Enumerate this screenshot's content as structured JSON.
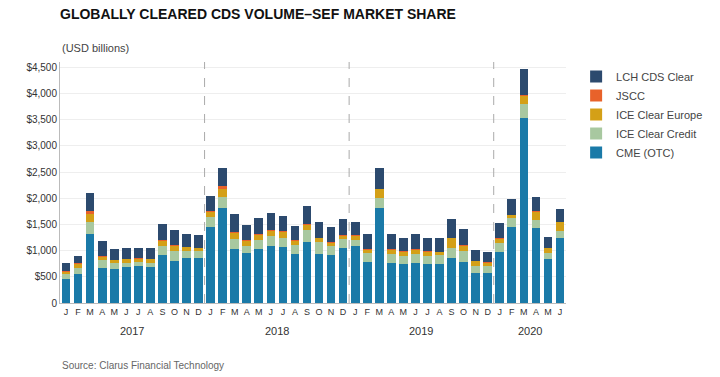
{
  "chart_data": {
    "type": "bar",
    "stacked": true,
    "title": "GLOBALLY CLEARED CDS VOLUME–SEF MARKET SHARE",
    "subtitle": "(USD billions)",
    "source": "Source: Clarus Financial Technology",
    "categories": [
      "J",
      "F",
      "M",
      "A",
      "M",
      "J",
      "J",
      "A",
      "S",
      "O",
      "N",
      "D",
      "J",
      "F",
      "M",
      "A",
      "M",
      "J",
      "J",
      "A",
      "S",
      "O",
      "N",
      "D",
      "J",
      "F",
      "M",
      "A",
      "M",
      "J",
      "J",
      "A",
      "S",
      "O",
      "N",
      "D",
      "J",
      "F",
      "M",
      "A",
      "M",
      "J"
    ],
    "annotations": [
      "2017",
      "2018",
      "2019",
      "2020"
    ],
    "series": [
      {
        "name": "CME (OTC)",
        "color": "#1a7aa8",
        "values": [
          460,
          550,
          1320,
          660,
          650,
          680,
          700,
          680,
          910,
          800,
          850,
          850,
          1460,
          1820,
          1030,
          950,
          1040,
          1080,
          1060,
          930,
          1160,
          940,
          920,
          1050,
          1080,
          780,
          1810,
          760,
          740,
          760,
          750,
          740,
          860,
          780,
          570,
          570,
          980,
          1460,
          3540,
          1430,
          840,
          1250
        ]
      },
      {
        "name": "ICE Clear Credit",
        "color": "#a8c8a0",
        "values": [
          90,
          115,
          230,
          155,
          105,
          90,
          90,
          90,
          175,
          195,
          150,
          150,
          175,
          195,
          195,
          145,
          170,
          200,
          190,
          170,
          230,
          230,
          170,
          170,
          130,
          170,
          200,
          170,
          155,
          170,
          155,
          170,
          195,
          215,
          145,
          130,
          170,
          155,
          265,
          145,
          110,
          130
        ]
      },
      {
        "name": "ICE Clear Europe",
        "color": "#d4a017",
        "values": [
          55,
          90,
          150,
          80,
          70,
          70,
          60,
          70,
          110,
          110,
          70,
          50,
          110,
          160,
          120,
          100,
          100,
          100,
          110,
          90,
          110,
          75,
          70,
          70,
          85,
          75,
          170,
          100,
          90,
          100,
          85,
          65,
          190,
          110,
          90,
          75,
          90,
          65,
          155,
          170,
          100,
          170
        ]
      },
      {
        "name": "JSCC",
        "color": "#e8622a",
        "values": [
          5,
          5,
          50,
          5,
          5,
          5,
          5,
          5,
          5,
          5,
          5,
          5,
          5,
          50,
          5,
          5,
          5,
          5,
          5,
          5,
          5,
          5,
          5,
          5,
          5,
          5,
          5,
          5,
          5,
          5,
          5,
          5,
          5,
          5,
          5,
          5,
          5,
          5,
          5,
          5,
          5,
          5
        ]
      },
      {
        "name": "LCH CDS Clear",
        "color": "#2c4a6e",
        "values": [
          150,
          130,
          350,
          280,
          200,
          200,
          200,
          200,
          300,
          280,
          250,
          250,
          300,
          350,
          350,
          280,
          300,
          330,
          300,
          280,
          350,
          300,
          280,
          300,
          250,
          280,
          400,
          280,
          260,
          280,
          250,
          260,
          350,
          310,
          200,
          200,
          280,
          300,
          500,
          280,
          200,
          230
        ]
      }
    ],
    "ylim": [
      0,
      4600
    ],
    "yticks": [
      0,
      {
        "value": 500,
        "label": "$500"
      },
      {
        "value": 1000,
        "label": "$1,000"
      },
      {
        "value": 1500,
        "label": "$1,500"
      },
      {
        "value": 2000,
        "label": "$2,000"
      },
      {
        "value": 2500,
        "label": "$2,500"
      },
      {
        "value": 3000,
        "label": "$3,000"
      },
      {
        "value": 3500,
        "label": "$3,500"
      },
      {
        "value": 4000,
        "label": "$4,000"
      },
      {
        "value": 4500,
        "label": "$4,500"
      }
    ],
    "grid": true,
    "legend": "right"
  }
}
